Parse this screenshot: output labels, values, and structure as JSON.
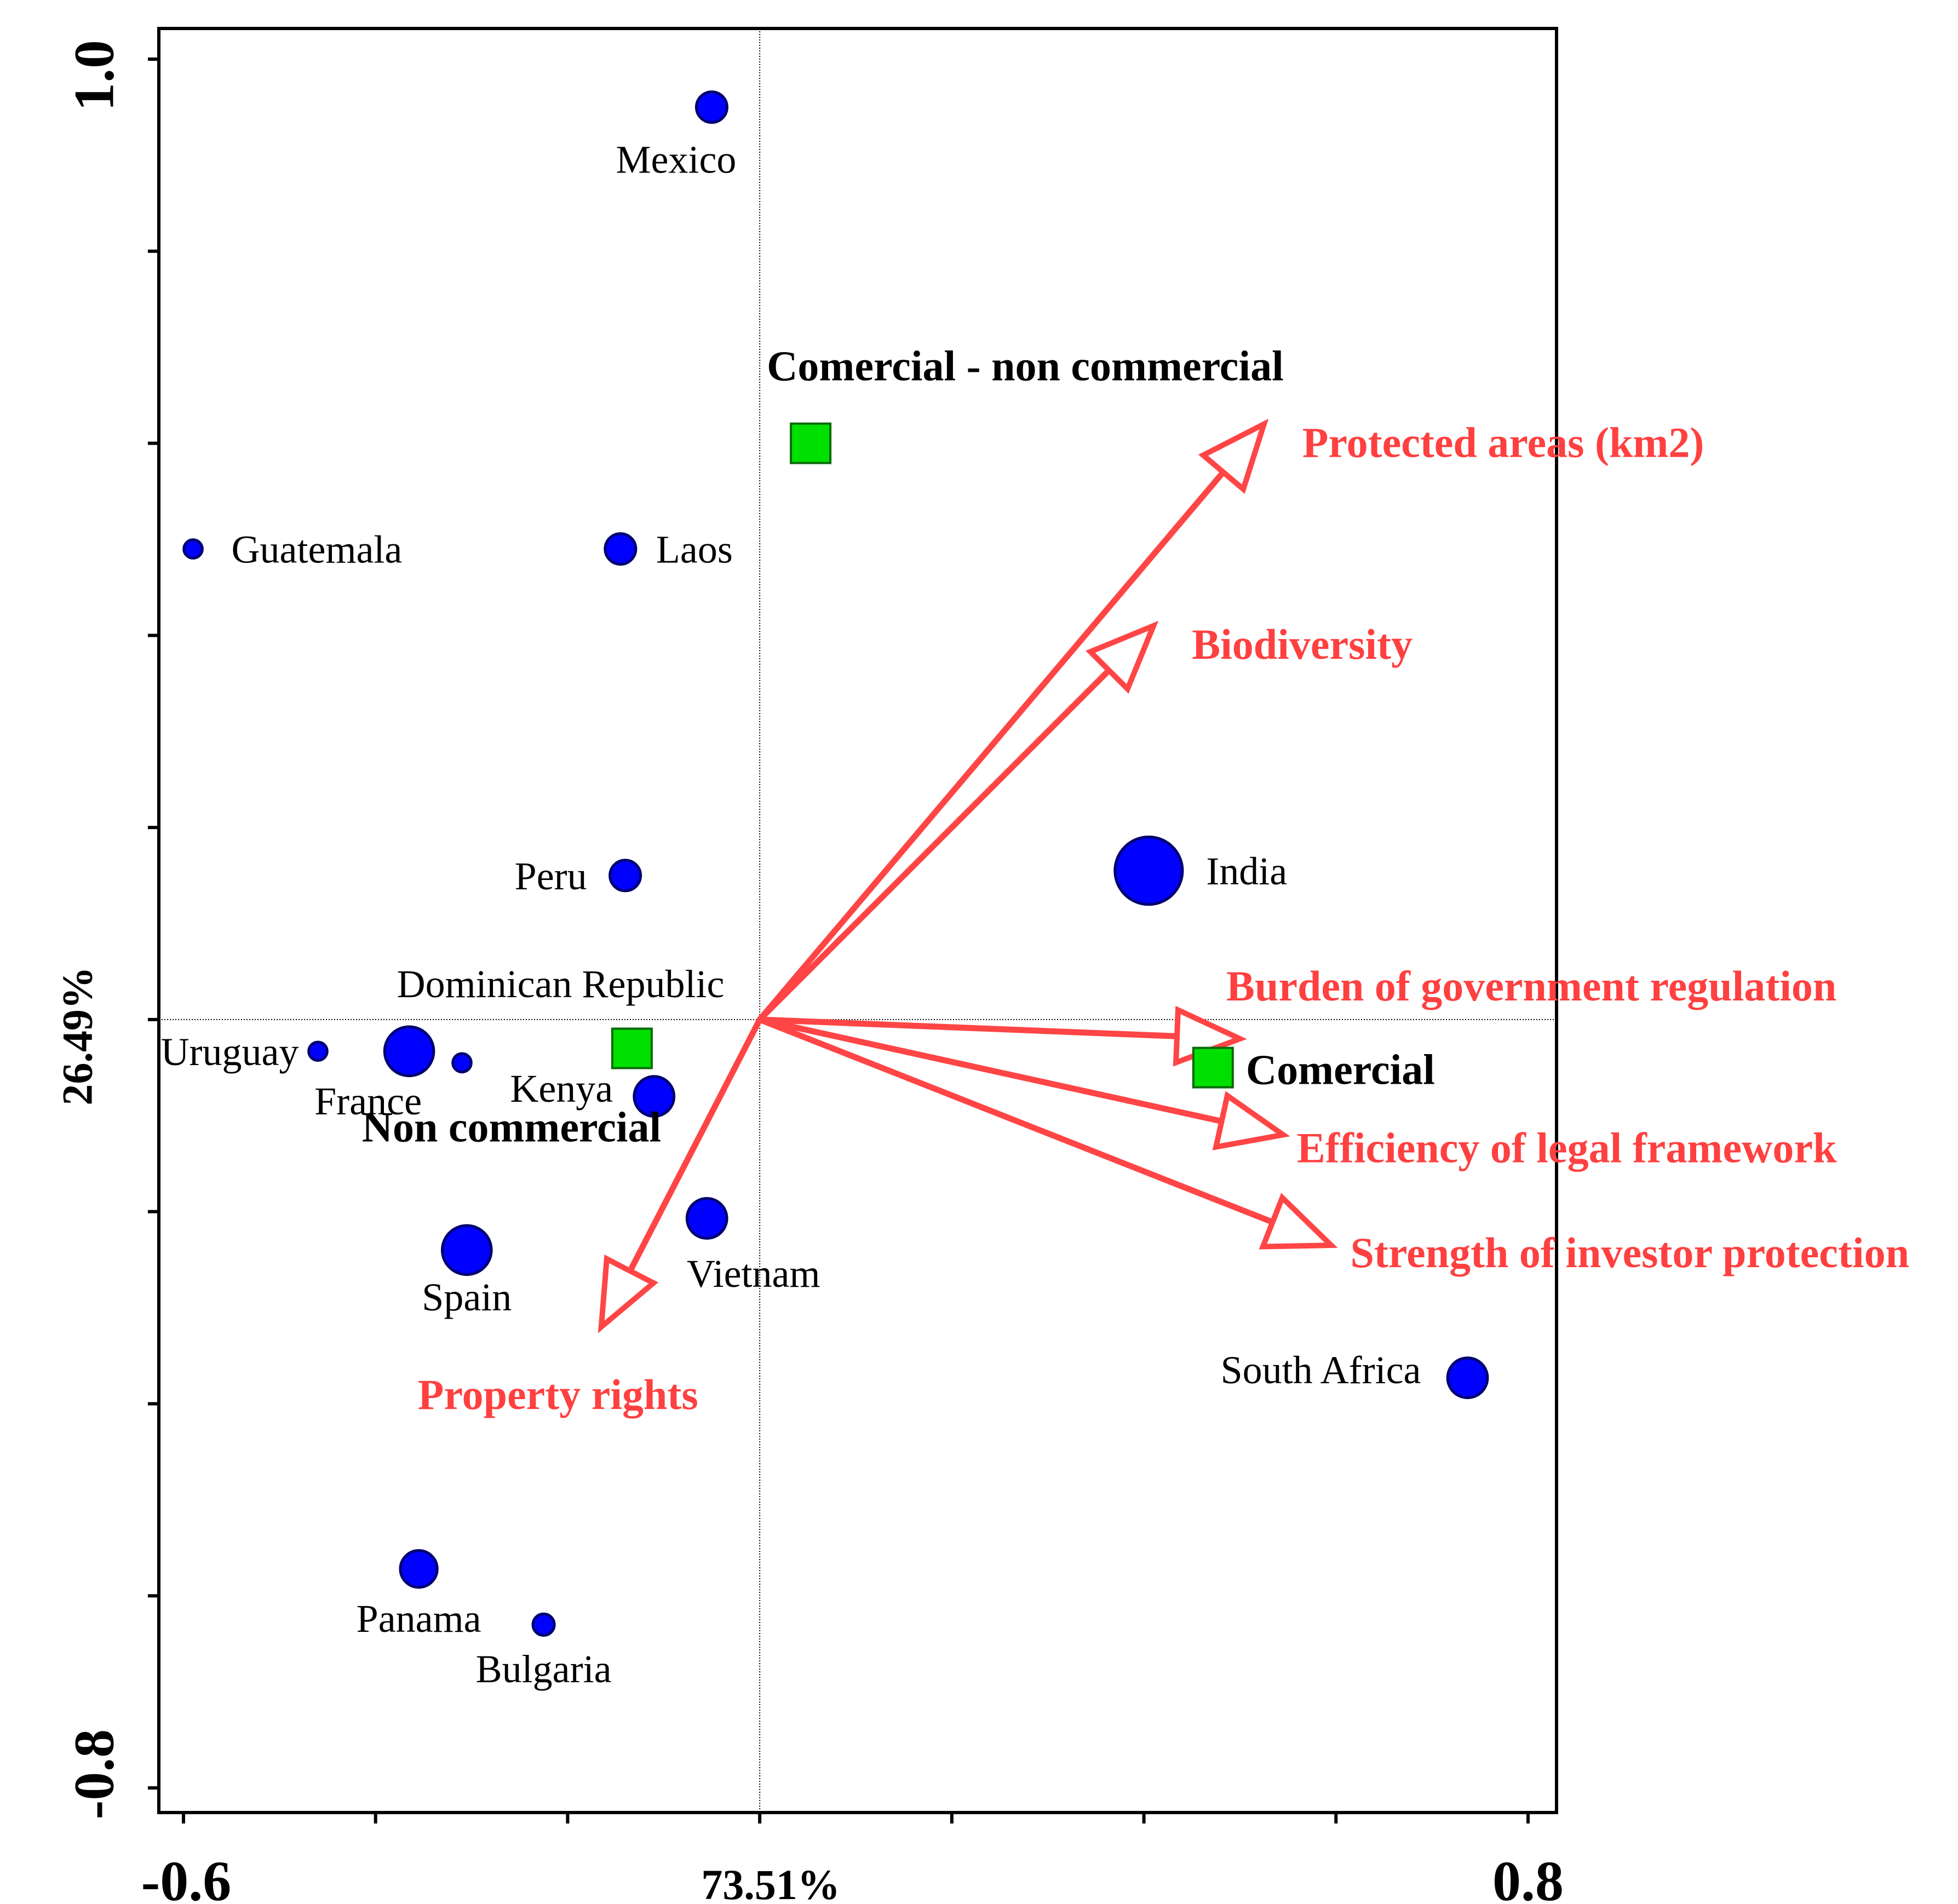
{
  "chart_data": {
    "type": "scatter",
    "subtype": "ordination-biplot",
    "title": "",
    "xlabel": "73.51%",
    "ylabel": "26.49%",
    "xlim": [
      -0.62,
      0.83
    ],
    "ylim": [
      -0.82,
      1.04
    ],
    "x_tick_labels": [
      {
        "value": -0.6,
        "label": "-0.6"
      },
      {
        "value": 0.8,
        "label": "0.8"
      }
    ],
    "y_tick_labels": [
      {
        "value": 1.0,
        "label": "1.0"
      },
      {
        "value": -0.8,
        "label": "-0.8"
      }
    ],
    "x_minor_ticks": [
      -0.6,
      -0.4,
      -0.2,
      0.0,
      0.2,
      0.4,
      0.6,
      0.8
    ],
    "y_minor_ticks": [
      1.0,
      0.8,
      0.6,
      0.4,
      0.2,
      0.0,
      -0.2,
      -0.4,
      -0.6,
      -0.8
    ],
    "reference_lines": {
      "x": 0.0,
      "y": 0.0
    },
    "colors": {
      "sample": "#0000ff",
      "sample_outline": "#00006e",
      "centroid": "#00e000",
      "centroid_outline": "#0a6a0a",
      "arrow": "#ff4545",
      "arrow_label": "#ff4040",
      "axis": "#000000"
    },
    "samples": [
      {
        "name": "Mexico",
        "x": -0.05,
        "y": 0.95,
        "size": 1.0
      },
      {
        "name": "Guatemala",
        "x": -0.59,
        "y": 0.49,
        "size": 0.6
      },
      {
        "name": "Laos",
        "x": -0.145,
        "y": 0.49,
        "size": 1.0
      },
      {
        "name": "Peru",
        "x": -0.14,
        "y": 0.15,
        "size": 1.0
      },
      {
        "name": "India",
        "x": 0.405,
        "y": 0.155,
        "size": 2.2
      },
      {
        "name": "Uruguay",
        "x": -0.46,
        "y": -0.033,
        "size": 0.6
      },
      {
        "name": "France",
        "x": -0.365,
        "y": -0.033,
        "size": 1.6
      },
      {
        "name": "Dominican Republic",
        "x": -0.31,
        "y": -0.045,
        "size": 0.6
      },
      {
        "name": "Kenya",
        "x": -0.11,
        "y": -0.08,
        "size": 1.3
      },
      {
        "name": "Vietnam",
        "x": -0.055,
        "y": -0.207,
        "size": 1.3
      },
      {
        "name": "Spain",
        "x": -0.305,
        "y": -0.24,
        "size": 1.6
      },
      {
        "name": "South Africa",
        "x": 0.737,
        "y": -0.373,
        "size": 1.3
      },
      {
        "name": "Panama",
        "x": -0.355,
        "y": -0.572,
        "size": 1.2
      },
      {
        "name": "Bulgaria",
        "x": -0.225,
        "y": -0.63,
        "size": 0.7
      }
    ],
    "centroids": [
      {
        "name": "Comercial - non commercial",
        "x": 0.053,
        "y": 0.6
      },
      {
        "name": "Non commercial",
        "x": -0.133,
        "y": -0.03
      },
      {
        "name": "Comercial",
        "x": 0.472,
        "y": -0.05
      }
    ],
    "vectors": [
      {
        "name": "Protected areas (km2)",
        "x": 0.525,
        "y": 0.62
      },
      {
        "name": "Biodiversity",
        "x": 0.41,
        "y": 0.41
      },
      {
        "name": "Burden of government regulation",
        "x": 0.5,
        "y": -0.02
      },
      {
        "name": "Efficiency of legal framework",
        "x": 0.545,
        "y": -0.12
      },
      {
        "name": "Strength of investor protection",
        "x": 0.595,
        "y": -0.235
      },
      {
        "name": "Property rights",
        "x": -0.165,
        "y": -0.32
      }
    ]
  }
}
